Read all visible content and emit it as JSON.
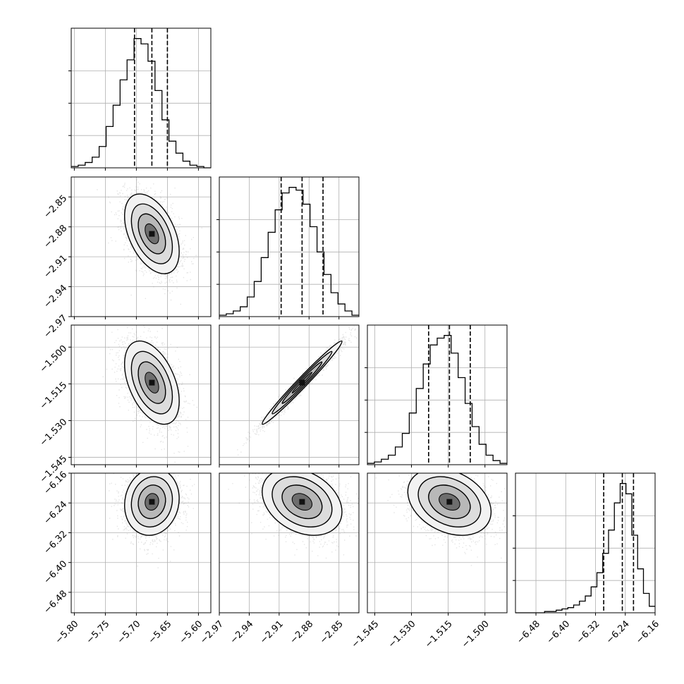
{
  "chart_data": {
    "type": "corner",
    "title": "",
    "grid": true,
    "parameters": [
      {
        "ticks": [
          -5.8,
          -5.75,
          -5.7,
          -5.65,
          -5.6
        ],
        "tick_labels": [
          "−5.80",
          "−5.75",
          "−5.70",
          "−5.65",
          "−5.60"
        ],
        "range": [
          -5.805,
          -5.58
        ],
        "quantiles": [
          -5.703,
          -5.675,
          -5.65
        ],
        "mode": -5.672,
        "hist_counts": [
          1,
          2,
          4,
          8,
          16,
          31,
          47,
          66,
          81,
          97,
          93,
          80,
          58,
          36,
          20,
          11,
          5,
          2,
          1,
          0
        ]
      },
      {
        "ticks": [
          -2.97,
          -2.94,
          -2.91,
          -2.88,
          -2.85
        ],
        "tick_labels": [
          "−2.97",
          "−2.94",
          "−2.91",
          "−2.88",
          "−2.85"
        ],
        "range": [
          -2.97,
          -2.83
        ],
        "quantiles": [
          -2.908,
          -2.887,
          -2.866
        ],
        "mode": -2.886,
        "hist_counts": [
          1,
          2,
          4,
          7,
          14,
          25,
          42,
          60,
          76,
          88,
          92,
          90,
          80,
          64,
          46,
          30,
          17,
          9,
          4,
          1
        ]
      },
      {
        "ticks": [
          -1.545,
          -1.53,
          -1.515,
          -1.5
        ],
        "tick_labels": [
          "−1.545",
          "−1.530",
          "−1.515",
          "−1.500"
        ],
        "range": [
          -1.548,
          -1.491
        ],
        "quantiles": [
          -1.523,
          -1.5145,
          -1.506
        ],
        "mode": -1.514,
        "hist_counts": [
          1,
          2,
          4,
          7,
          13,
          23,
          38,
          56,
          74,
          88,
          93,
          95,
          82,
          64,
          45,
          28,
          15,
          7,
          3,
          1
        ]
      },
      {
        "ticks": [
          -6.48,
          -6.4,
          -6.32,
          -6.24,
          -6.16
        ],
        "tick_labels": [
          "−6.48",
          "−6.40",
          "−6.32",
          "−6.24",
          "−6.16"
        ],
        "range": [
          -6.535,
          -6.16
        ],
        "quantiles": [
          -6.298,
          -6.248,
          -6.218
        ],
        "mode": -6.237,
        "hist_counts": [
          0,
          0,
          0,
          0,
          0,
          1,
          1,
          2,
          3,
          4,
          6,
          9,
          13,
          20,
          31,
          46,
          64,
          85,
          100,
          92,
          60,
          34,
          15,
          5
        ]
      }
    ],
    "pairs": [
      {
        "x": 0,
        "y": 1,
        "mean": [
          -5.675,
          -2.887
        ],
        "sd": [
          0.022,
          0.02
        ],
        "rho": -0.45
      },
      {
        "x": 0,
        "y": 2,
        "mean": [
          -5.675,
          -1.5145
        ],
        "sd": [
          0.022,
          0.0085
        ],
        "rho": -0.45
      },
      {
        "x": 1,
        "y": 2,
        "mean": [
          -2.887,
          -1.5145
        ],
        "sd": [
          0.02,
          0.0085
        ],
        "rho": 0.985
      },
      {
        "x": 0,
        "y": 3,
        "mean": [
          -5.675,
          -6.237
        ],
        "sd": [
          0.022,
          0.045
        ],
        "rho": 0.1
      },
      {
        "x": 1,
        "y": 3,
        "mean": [
          -2.887,
          -6.237
        ],
        "sd": [
          0.02,
          0.045
        ],
        "rho": -0.3
      },
      {
        "x": 2,
        "y": 3,
        "mean": [
          -1.5145,
          -6.237
        ],
        "sd": [
          0.0085,
          0.045
        ],
        "rho": -0.3
      }
    ]
  }
}
